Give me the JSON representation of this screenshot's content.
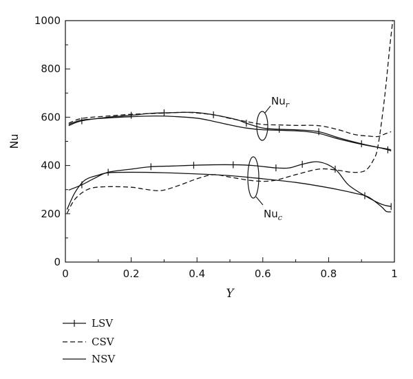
{
  "chart_data": {
    "type": "line",
    "title": "",
    "xlabel": "Y",
    "ylabel": "Nu",
    "xlim": [
      0,
      1
    ],
    "ylim": [
      0,
      1000
    ],
    "x_ticks": [
      "0",
      "0.2",
      "0.4",
      "0.6",
      "0.8",
      "1"
    ],
    "y_ticks": [
      "0",
      "200",
      "400",
      "600",
      "800",
      "1000"
    ],
    "grid": false,
    "legend_position": "bottom-left",
    "legend": [
      {
        "name": "LSV",
        "style": "solid-with-markers"
      },
      {
        "name": "CSV",
        "style": "dashed"
      },
      {
        "name": "NSV",
        "style": "solid"
      }
    ],
    "annotations": [
      {
        "text": "Nu",
        "subscript": "r"
      },
      {
        "text": "Nu",
        "subscript": "c"
      }
    ],
    "series": [
      {
        "name": "LSV",
        "group": "Nu_r",
        "style": "solid-with-markers",
        "x": [
          0.01,
          0.05,
          0.13,
          0.2,
          0.26,
          0.3,
          0.39,
          0.45,
          0.52,
          0.55,
          0.6,
          0.65,
          0.7,
          0.77,
          0.83,
          0.9,
          0.95,
          0.98,
          0.99
        ],
        "y": [
          565,
          585,
          600,
          608,
          616,
          618,
          620,
          610,
          590,
          575,
          555,
          550,
          548,
          540,
          515,
          490,
          475,
          465,
          460
        ]
      },
      {
        "name": "CSV",
        "group": "Nu_r",
        "style": "dashed",
        "x": [
          0.01,
          0.05,
          0.13,
          0.2,
          0.3,
          0.37,
          0.45,
          0.5,
          0.55,
          0.6,
          0.65,
          0.7,
          0.77,
          0.83,
          0.88,
          0.92,
          0.95,
          0.97,
          0.99
        ],
        "y": [
          575,
          595,
          605,
          612,
          617,
          620,
          610,
          595,
          582,
          570,
          568,
          566,
          565,
          548,
          528,
          522,
          520,
          530,
          540
        ]
      },
      {
        "name": "NSV",
        "group": "Nu_r",
        "style": "solid",
        "x": [
          0.01,
          0.05,
          0.13,
          0.2,
          0.27,
          0.33,
          0.4,
          0.45,
          0.5,
          0.55,
          0.6,
          0.67,
          0.72,
          0.77,
          0.83,
          0.9,
          0.95,
          0.98,
          0.99
        ],
        "y": [
          570,
          588,
          597,
          602,
          605,
          603,
          596,
          583,
          568,
          555,
          548,
          545,
          542,
          533,
          510,
          488,
          475,
          468,
          465
        ]
      },
      {
        "name": "LSV",
        "group": "Nu_c",
        "style": "solid-with-markers",
        "x": [
          0.01,
          0.05,
          0.09,
          0.13,
          0.2,
          0.26,
          0.33,
          0.39,
          0.45,
          0.51,
          0.57,
          0.64,
          0.68,
          0.72,
          0.77,
          0.82,
          0.86,
          0.91,
          0.96,
          0.99
        ],
        "y": [
          298,
          320,
          348,
          372,
          385,
          395,
          398,
          401,
          403,
          403,
          400,
          390,
          390,
          405,
          415,
          385,
          320,
          275,
          240,
          230
        ]
      },
      {
        "name": "CSV",
        "group": "Nu_c",
        "style": "dashed",
        "x": [
          0.005,
          0.03,
          0.07,
          0.12,
          0.2,
          0.24,
          0.29,
          0.34,
          0.4,
          0.45,
          0.5,
          0.57,
          0.63,
          0.7,
          0.77,
          0.82,
          0.87,
          0.91,
          0.935,
          0.95,
          0.97,
          0.985,
          0.995
        ],
        "y": [
          202,
          262,
          302,
          312,
          310,
          302,
          296,
          315,
          345,
          362,
          352,
          337,
          337,
          362,
          385,
          382,
          372,
          378,
          420,
          480,
          680,
          880,
          1000
        ]
      },
      {
        "name": "NSV",
        "group": "Nu_c",
        "style": "solid",
        "x": [
          0.005,
          0.03,
          0.06,
          0.1,
          0.13,
          0.2,
          0.3,
          0.4,
          0.5,
          0.6,
          0.7,
          0.77,
          0.83,
          0.88,
          0.92,
          0.96,
          0.975,
          0.99
        ],
        "y": [
          218,
          290,
          340,
          360,
          370,
          372,
          370,
          365,
          358,
          345,
          330,
          315,
          300,
          285,
          270,
          230,
          210,
          208
        ]
      }
    ]
  }
}
